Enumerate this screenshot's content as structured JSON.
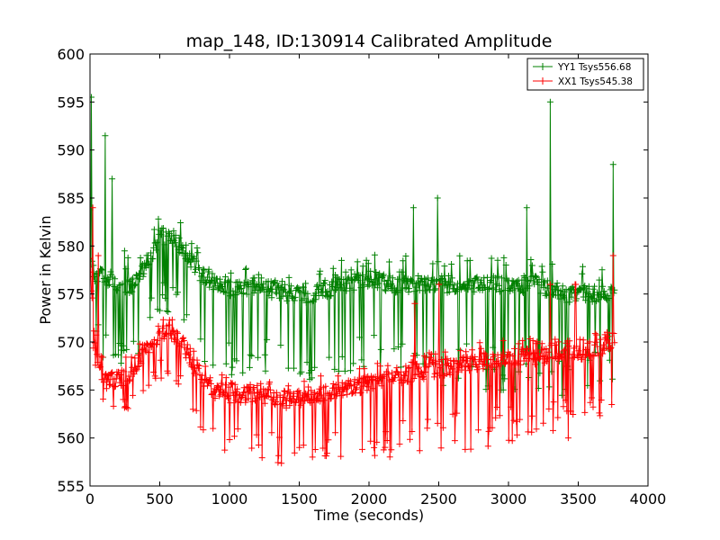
{
  "chart_data": {
    "type": "line",
    "title": "map_148, ID:130914 Calibrated Amplitude",
    "xlabel": "Time (seconds)",
    "ylabel": "Power in Kelvin",
    "xlim": [
      0,
      4000
    ],
    "ylim": [
      555,
      600
    ],
    "x_ticks": [
      0,
      500,
      1000,
      1500,
      2000,
      2500,
      3000,
      3500,
      4000
    ],
    "y_ticks": [
      555,
      560,
      565,
      570,
      575,
      580,
      585,
      590,
      595,
      600
    ],
    "x_tick_labels": [
      "0",
      "500",
      "1000",
      "1500",
      "2000",
      "2500",
      "3000",
      "3500",
      "4000"
    ],
    "y_tick_labels": [
      "555",
      "560",
      "565",
      "570",
      "575",
      "580",
      "585",
      "590",
      "595",
      "600"
    ],
    "grid": false,
    "legend_position": "top-right",
    "marker": "plus",
    "x_range": [
      0,
      3760
    ],
    "series": [
      {
        "name": "YY1 Tsys556.68",
        "color": "#008000",
        "baseline": [
          [
            0,
            579
          ],
          [
            30,
            577
          ],
          [
            100,
            577
          ],
          [
            200,
            576
          ],
          [
            300,
            576
          ],
          [
            400,
            578
          ],
          [
            500,
            581
          ],
          [
            600,
            581
          ],
          [
            700,
            579
          ],
          [
            800,
            577
          ],
          [
            900,
            576
          ],
          [
            1000,
            575.5
          ],
          [
            1200,
            576
          ],
          [
            1400,
            575
          ],
          [
            1600,
            575
          ],
          [
            1800,
            576
          ],
          [
            2000,
            576.5
          ],
          [
            2200,
            576
          ],
          [
            2400,
            576
          ],
          [
            2600,
            576
          ],
          [
            2800,
            576
          ],
          [
            3000,
            576
          ],
          [
            3200,
            576
          ],
          [
            3400,
            575
          ],
          [
            3600,
            575
          ],
          [
            3760,
            575
          ]
        ],
        "spread_low": [
          [
            0,
            9
          ],
          [
            500,
            8
          ],
          [
            900,
            9
          ],
          [
            1000,
            10
          ],
          [
            1500,
            9
          ],
          [
            2000,
            10
          ],
          [
            2500,
            11
          ],
          [
            3000,
            11
          ],
          [
            3500,
            11
          ],
          [
            3760,
            10
          ]
        ],
        "spread_high": [
          [
            0,
            5
          ],
          [
            500,
            3
          ],
          [
            1000,
            2
          ],
          [
            1500,
            2
          ],
          [
            2000,
            3
          ],
          [
            2500,
            3
          ],
          [
            3000,
            3
          ],
          [
            3500,
            3
          ],
          [
            3760,
            4
          ]
        ],
        "spikes": [
          [
            10,
            595.5
          ],
          [
            110,
            591.5
          ],
          [
            160,
            587
          ],
          [
            2320,
            584
          ],
          [
            2490,
            585
          ],
          [
            3130,
            584
          ],
          [
            3300,
            595
          ],
          [
            3750,
            588.5
          ]
        ]
      },
      {
        "name": "XX1 Tsys545.38",
        "color": "#ff0000",
        "baseline": [
          [
            0,
            578
          ],
          [
            30,
            570
          ],
          [
            100,
            566
          ],
          [
            200,
            566
          ],
          [
            300,
            567
          ],
          [
            400,
            569
          ],
          [
            500,
            571
          ],
          [
            600,
            571
          ],
          [
            700,
            569
          ],
          [
            800,
            566
          ],
          [
            900,
            565
          ],
          [
            1000,
            564.5
          ],
          [
            1200,
            564.5
          ],
          [
            1400,
            564
          ],
          [
            1600,
            564.5
          ],
          [
            1800,
            565
          ],
          [
            2000,
            565.5
          ],
          [
            2200,
            566.5
          ],
          [
            2400,
            567
          ],
          [
            2600,
            567.5
          ],
          [
            2800,
            568
          ],
          [
            3000,
            568.5
          ],
          [
            3200,
            568.5
          ],
          [
            3400,
            569
          ],
          [
            3600,
            569
          ],
          [
            3760,
            570
          ]
        ],
        "spread_low": [
          [
            0,
            3
          ],
          [
            500,
            5
          ],
          [
            900,
            6
          ],
          [
            1500,
            7
          ],
          [
            2000,
            8
          ],
          [
            2500,
            9
          ],
          [
            3000,
            9
          ],
          [
            3500,
            9
          ],
          [
            3760,
            8
          ]
        ],
        "spread_high": [
          [
            0,
            2
          ],
          [
            500,
            2
          ],
          [
            1000,
            2
          ],
          [
            1500,
            2
          ],
          [
            2000,
            2
          ],
          [
            2500,
            2
          ],
          [
            3000,
            2
          ],
          [
            3500,
            2
          ],
          [
            3760,
            2
          ]
        ],
        "spikes": [
          [
            20,
            584
          ],
          [
            60,
            579
          ],
          [
            2330,
            574
          ],
          [
            2500,
            576
          ],
          [
            3300,
            576
          ],
          [
            3480,
            576
          ],
          [
            3750,
            579
          ]
        ]
      }
    ]
  }
}
